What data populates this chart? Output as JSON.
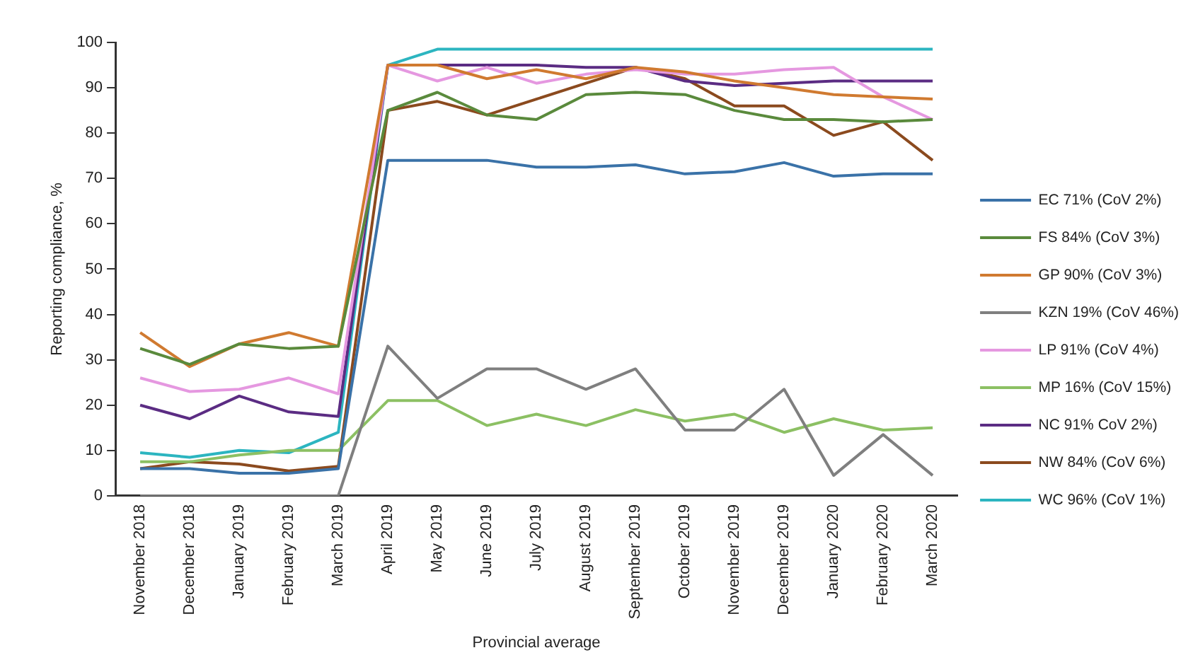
{
  "chart_data": {
    "type": "line",
    "xlabel": "Provincial average",
    "ylabel": "Reporting compliance, %",
    "categories": [
      "November 2018",
      "December 2018",
      "January 2019",
      "February 2019",
      "March 2019",
      "April 2019",
      "May 2019",
      "June 2019",
      "July 2019",
      "August 2019",
      "September 2019",
      "October 2019",
      "November 2019",
      "December 2019",
      "January 2020",
      "February 2020",
      "March 2020"
    ],
    "ylim": [
      0,
      100
    ],
    "yticks": [
      0,
      10,
      20,
      30,
      40,
      50,
      60,
      70,
      80,
      90,
      100
    ],
    "grid": false,
    "legend": "right",
    "marker": "none",
    "line_style": "solid",
    "series": [
      {
        "name": "EC 71% (CoV 2%)",
        "color": "#3a72a8",
        "values": [
          6,
          6,
          5,
          5,
          6,
          74,
          74,
          74,
          72.5,
          72.5,
          73,
          71,
          71.5,
          73.5,
          70.5,
          71,
          71
        ]
      },
      {
        "name": "FS 84% (CoV 3%)",
        "color": "#5a8a3c",
        "values": [
          32.5,
          29,
          33.5,
          32.5,
          33,
          85,
          89,
          84,
          83,
          88.5,
          89,
          88.5,
          85,
          83,
          83,
          82.5,
          83
        ]
      },
      {
        "name": "GP 90% (CoV 3%)",
        "color": "#d07a30",
        "values": [
          36,
          28.5,
          33.5,
          36,
          33,
          95,
          95,
          92,
          94,
          92,
          94.5,
          93.5,
          91.5,
          90,
          88.5,
          88,
          87.5
        ]
      },
      {
        "name": "KZN 19% (CoV 46%)",
        "color": "#7f7f7f",
        "values": [
          0,
          0,
          0,
          0,
          0,
          33,
          21.5,
          28,
          28,
          23.5,
          28,
          14.5,
          14.5,
          23.5,
          4.5,
          13.5,
          4.5
        ]
      },
      {
        "name": "LP 91% (CoV 4%)",
        "color": "#e598e0",
        "values": [
          26,
          23,
          23.5,
          26,
          22.5,
          95,
          91.5,
          94.5,
          91,
          93,
          94,
          93,
          93,
          94,
          94.5,
          88,
          83
        ]
      },
      {
        "name": "MP 16% (CoV 15%)",
        "color": "#8cc063",
        "values": [
          7.5,
          7.5,
          9,
          10,
          10,
          21,
          21,
          15.5,
          18,
          15.5,
          19,
          16.5,
          18,
          14,
          17,
          14.5,
          15
        ]
      },
      {
        "name": "NC 91% CoV 2%)",
        "color": "#5b2c83",
        "values": [
          20,
          17,
          22,
          18.5,
          17.5,
          95,
          95,
          95,
          95,
          94.5,
          94.5,
          91.5,
          90.5,
          91,
          91.5,
          91.5,
          91.5
        ]
      },
      {
        "name": "NW 84% (CoV 6%)",
        "color": "#8b4a1e",
        "values": [
          6,
          7.5,
          7,
          5.5,
          6.5,
          85,
          87,
          84,
          87.5,
          91,
          94.5,
          92,
          86,
          86,
          79.5,
          82.5,
          74
        ]
      },
      {
        "name": "WC 96% (CoV 1%)",
        "color": "#2cb5c0",
        "values": [
          9.5,
          8.5,
          10,
          9.5,
          14,
          95,
          98.5,
          98.5,
          98.5,
          98.5,
          98.5,
          98.5,
          98.5,
          98.5,
          98.5,
          98.5,
          98.5
        ]
      }
    ]
  }
}
